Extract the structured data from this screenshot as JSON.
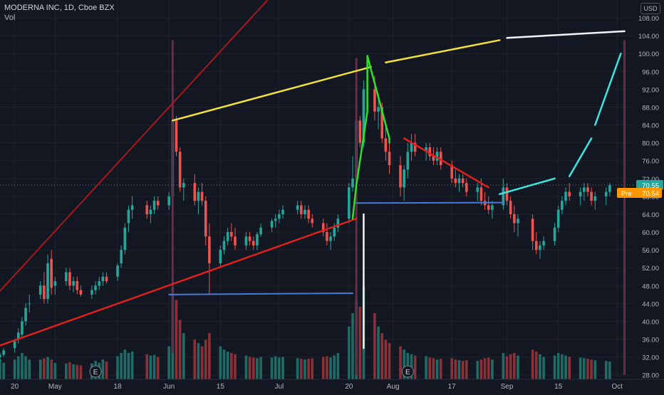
{
  "legend": {
    "symbol": "MODERNA INC, 1D, Cboe BZX",
    "volume_label": "Vol"
  },
  "currency": "USD",
  "price_badges": {
    "last": "70.55",
    "pre_label": "Pre",
    "pre_value": "70.54"
  },
  "earnings_marker": "E",
  "colors": {
    "background": "#131722",
    "up": "#26a69a",
    "down": "#ef5350",
    "vol_up": "#1f6b65",
    "vol_down": "#8a3036",
    "last_price_badge": "#26a69a",
    "pre_badge": "#ff9800",
    "drawing_red": "#e0201a",
    "drawing_yellow": "#f2e13c",
    "drawing_white": "#f4f4f4",
    "drawing_green": "#2ee02b",
    "drawing_blue": "#4a78d8",
    "drawing_cyan": "#3ce6e0",
    "drawing_darkred": "#a8181c",
    "vertical_lines": "#6a2a48"
  },
  "chart_data": {
    "type": "candlestick",
    "y_axis": {
      "ticks": [
        "28.00",
        "32.00",
        "36.00",
        "40.00",
        "44.00",
        "48.00",
        "52.00",
        "56.00",
        "60.00",
        "64.00",
        "68.00",
        "72.00",
        "76.00",
        "80.00",
        "84.00",
        "88.00",
        "92.00",
        "96.00",
        "100.00",
        "104.00",
        "108.00"
      ],
      "range": [
        27,
        112
      ],
      "side": "right"
    },
    "x_axis": {
      "ticks": [
        "20",
        "May",
        "18",
        "Jun",
        "15",
        "Jul",
        "20",
        "Aug",
        "17",
        "Sep",
        "15",
        "Oct"
      ],
      "range": [
        "2020-04-16",
        "2020-10-06"
      ]
    },
    "last_price": 70.55,
    "pre_market_price": 70.54,
    "earnings_dates": [
      "2020-05-12",
      "2020-08-05"
    ],
    "candles": [
      [
        "2020-04-16",
        32,
        33,
        31,
        32.5,
        3
      ],
      [
        "2020-04-17",
        32.5,
        34,
        32,
        33.5,
        2.5
      ],
      [
        "2020-04-20",
        34,
        36,
        33,
        35.5,
        3
      ],
      [
        "2020-04-21",
        36,
        38.5,
        35,
        37.5,
        3.5
      ],
      [
        "2020-04-22",
        37,
        41,
        36.5,
        40,
        4
      ],
      [
        "2020-04-23",
        40,
        44,
        39,
        43,
        3.5
      ],
      [
        "2020-04-24",
        44,
        46,
        42,
        44,
        3
      ],
      [
        "2020-04-27",
        46,
        49,
        45,
        48,
        3
      ],
      [
        "2020-04-28",
        48,
        51,
        44,
        45,
        3.2
      ],
      [
        "2020-04-29",
        45,
        55,
        44,
        53,
        3.4
      ],
      [
        "2020-04-30",
        54,
        56,
        46,
        47.5,
        3
      ],
      [
        "2020-05-01",
        48,
        50,
        46,
        49,
        2.5
      ],
      [
        "2020-05-04",
        49,
        52,
        48,
        51,
        2.4
      ],
      [
        "2020-05-05",
        51,
        52,
        47,
        48,
        2.6
      ],
      [
        "2020-05-06",
        48,
        50,
        46.5,
        49,
        2.3
      ],
      [
        "2020-05-07",
        49,
        50,
        46,
        47,
        2.2
      ],
      [
        "2020-05-08",
        47,
        48,
        45.5,
        46,
        2.1
      ],
      [
        "2020-05-11",
        46,
        48,
        45,
        47,
        2.4
      ],
      [
        "2020-05-12",
        47,
        49,
        46,
        48,
        2.8
      ],
      [
        "2020-05-13",
        48,
        50,
        47,
        49,
        2.5
      ],
      [
        "2020-05-14",
        49,
        51,
        48,
        50,
        3
      ],
      [
        "2020-05-15",
        50,
        51,
        48.5,
        49,
        2.7
      ],
      [
        "2020-05-18",
        50,
        53,
        49,
        52.5,
        3.5
      ],
      [
        "2020-05-19",
        53,
        57,
        52,
        56,
        4
      ],
      [
        "2020-05-20",
        56,
        62,
        55,
        61,
        4.5
      ],
      [
        "2020-05-21",
        62,
        66,
        60,
        65,
        4
      ],
      [
        "2020-05-22",
        65,
        68,
        63,
        66,
        4.2
      ],
      [
        "2020-05-26",
        66,
        67,
        63,
        64,
        3.8
      ],
      [
        "2020-05-27",
        64,
        66,
        62,
        65,
        3.6
      ],
      [
        "2020-05-28",
        65,
        68,
        64,
        67,
        3.7
      ],
      [
        "2020-05-29",
        67,
        68,
        65,
        66,
        3.4
      ],
      [
        "2020-06-01",
        66,
        69,
        65,
        68,
        5
      ],
      [
        "2020-06-02",
        68,
        87,
        67,
        85,
        14
      ],
      [
        "2020-06-03",
        85,
        86,
        77,
        78,
        12
      ],
      [
        "2020-06-04",
        78,
        79,
        69,
        70,
        9
      ],
      [
        "2020-06-05",
        70,
        72,
        67,
        71,
        7
      ],
      [
        "2020-06-08",
        71,
        73,
        66,
        67,
        6
      ],
      [
        "2020-06-09",
        67,
        70,
        64,
        69,
        5.5
      ],
      [
        "2020-06-10",
        69,
        71,
        66,
        67,
        5
      ],
      [
        "2020-06-11",
        67,
        68,
        57,
        59,
        6
      ],
      [
        "2020-06-12",
        59,
        62,
        46,
        53,
        7
      ],
      [
        "2020-06-15",
        53,
        57,
        52,
        56,
        5
      ],
      [
        "2020-06-16",
        56,
        59,
        55,
        58,
        4.5
      ],
      [
        "2020-06-17",
        58,
        61,
        57,
        60,
        4.2
      ],
      [
        "2020-06-18",
        60,
        62,
        58,
        59,
        4
      ],
      [
        "2020-06-19",
        59,
        61,
        56,
        57,
        3.8
      ],
      [
        "2020-06-22",
        57,
        60,
        56,
        59,
        3.6
      ],
      [
        "2020-06-23",
        59,
        60,
        57,
        58,
        3.4
      ],
      [
        "2020-06-24",
        58,
        59,
        56,
        57,
        3.3
      ],
      [
        "2020-06-25",
        57,
        60,
        56,
        59.5,
        3.2
      ],
      [
        "2020-06-26",
        59.5,
        62,
        59,
        61,
        3.4
      ],
      [
        "2020-06-29",
        61,
        63,
        60,
        62.5,
        3.3
      ],
      [
        "2020-06-30",
        62.5,
        64,
        61,
        63,
        3.5
      ],
      [
        "2020-07-01",
        63,
        65,
        62,
        64,
        3.3
      ],
      [
        "2020-07-02",
        64,
        66,
        63,
        65,
        3.4
      ],
      [
        "2020-07-06",
        65,
        67,
        64,
        66,
        3.2
      ],
      [
        "2020-07-07",
        66,
        67,
        63,
        64,
        3.1
      ],
      [
        "2020-07-08",
        64,
        66,
        63,
        65,
        3
      ],
      [
        "2020-07-09",
        65,
        66,
        62,
        63,
        3.1
      ],
      [
        "2020-07-10",
        63,
        64,
        61,
        62,
        3.2
      ],
      [
        "2020-07-13",
        62,
        63,
        59,
        60,
        3.4
      ],
      [
        "2020-07-14",
        60,
        62,
        57,
        58,
        3.5
      ],
      [
        "2020-07-15",
        58,
        60,
        56,
        59,
        3.3
      ],
      [
        "2020-07-16",
        59,
        62,
        58,
        61,
        3.6
      ],
      [
        "2020-07-17",
        61,
        64,
        60,
        63,
        4
      ],
      [
        "2020-07-20",
        63,
        71,
        62,
        70,
        8
      ],
      [
        "2020-07-21",
        70,
        77,
        69,
        72,
        10
      ],
      [
        "2020-07-22",
        72,
        88,
        70,
        85,
        12
      ],
      [
        "2020-07-23",
        85,
        86,
        79,
        80,
        11
      ],
      [
        "2020-07-24",
        80,
        94,
        79,
        92,
        14
      ],
      [
        "2020-07-27",
        92,
        95,
        85,
        87,
        10
      ],
      [
        "2020-07-28",
        87,
        91,
        83,
        88,
        8
      ],
      [
        "2020-07-29",
        88,
        89,
        80,
        81,
        7
      ],
      [
        "2020-07-30",
        81,
        84,
        76,
        78,
        6
      ],
      [
        "2020-07-31",
        78,
        80,
        73,
        75,
        5.5
      ],
      [
        "2020-08-03",
        75,
        77,
        68,
        70,
        5
      ],
      [
        "2020-08-04",
        70,
        75,
        67,
        74,
        4.5
      ],
      [
        "2020-08-05",
        74,
        80,
        72,
        78,
        4
      ],
      [
        "2020-08-06",
        78,
        82,
        76,
        80,
        3.8
      ],
      [
        "2020-08-07",
        80,
        82,
        77,
        78,
        3.6
      ],
      [
        "2020-08-10",
        78,
        80,
        76,
        79,
        3.5
      ],
      [
        "2020-08-11",
        79,
        80,
        76,
        77,
        3.3
      ],
      [
        "2020-08-12",
        77,
        79,
        75,
        76,
        3.2
      ],
      [
        "2020-08-13",
        76,
        79,
        75,
        78,
        3
      ],
      [
        "2020-08-14",
        78,
        79,
        74,
        75,
        3.1
      ],
      [
        "2020-08-17",
        75,
        76,
        71,
        72,
        3.2
      ],
      [
        "2020-08-18",
        72,
        74,
        70,
        71,
        3
      ],
      [
        "2020-08-19",
        71,
        73,
        69,
        72,
        2.9
      ],
      [
        "2020-08-20",
        72,
        73,
        70,
        71,
        2.8
      ],
      [
        "2020-08-21",
        71,
        72,
        68,
        69,
        2.9
      ],
      [
        "2020-08-24",
        69,
        71,
        67,
        70,
        2.8
      ],
      [
        "2020-08-25",
        70,
        72,
        66,
        67,
        3
      ],
      [
        "2020-08-26",
        67,
        69,
        65,
        66,
        3.2
      ],
      [
        "2020-08-27",
        66,
        68,
        64,
        65,
        3.3
      ],
      [
        "2020-08-28",
        65,
        67,
        63,
        66,
        3
      ],
      [
        "2020-08-31",
        66,
        72,
        65,
        70,
        4
      ],
      [
        "2020-09-01",
        70,
        71,
        66,
        67,
        3.5
      ],
      [
        "2020-09-02",
        67,
        68,
        63,
        64,
        3.8
      ],
      [
        "2020-09-03",
        64,
        66,
        60,
        62,
        4
      ],
      [
        "2020-09-04",
        62,
        64,
        59,
        63,
        3.6
      ],
      [
        "2020-09-08",
        63,
        64,
        56,
        58,
        4.5
      ],
      [
        "2020-09-09",
        58,
        60,
        55,
        56,
        4.2
      ],
      [
        "2020-09-10",
        56,
        58,
        54,
        57,
        3.8
      ],
      [
        "2020-09-11",
        57,
        59,
        56,
        58,
        3.4
      ],
      [
        "2020-09-14",
        58,
        62,
        57,
        61,
        3.6
      ],
      [
        "2020-09-15",
        61,
        66,
        60,
        65,
        4
      ],
      [
        "2020-09-16",
        65,
        68,
        64,
        67,
        3.8
      ],
      [
        "2020-09-17",
        67,
        70,
        66,
        69,
        3.6
      ],
      [
        "2020-09-18",
        69,
        71,
        67,
        68,
        3.4
      ],
      [
        "2020-09-21",
        68,
        70,
        66,
        69,
        3.3
      ],
      [
        "2020-09-22",
        69,
        71,
        67,
        70,
        3.2
      ],
      [
        "2020-09-23",
        70,
        71,
        68,
        69,
        3.1
      ],
      [
        "2020-09-24",
        69,
        70,
        66,
        67,
        3
      ],
      [
        "2020-09-25",
        67,
        69,
        65,
        68,
        2.9
      ],
      [
        "2020-09-28",
        68,
        70,
        66,
        69,
        2.8
      ],
      [
        "2020-09-29",
        69,
        71,
        68,
        70.55,
        2.7
      ]
    ]
  },
  "drawings": {
    "vertical_lines": [
      {
        "date": "2020-06-02",
        "y1": 33,
        "y2": 103
      },
      {
        "date": "2020-07-22",
        "y1": 28,
        "y2": 99
      },
      {
        "date": "2020-10-03",
        "y1": 28,
        "y2": 103
      }
    ],
    "lines": [
      {
        "color": "drawing_darkred",
        "width": 2,
        "points": [
          [
            "2020-04-14",
            45
          ],
          [
            "2020-09-04",
            173
          ]
        ]
      },
      {
        "color": "drawing_red",
        "width": 2.5,
        "points": [
          [
            "2020-04-14",
            34
          ],
          [
            "2020-07-22",
            63
          ]
        ]
      },
      {
        "color": "drawing_yellow",
        "width": 2.5,
        "points": [
          [
            "2020-06-02",
            85
          ],
          [
            "2020-07-26",
            97
          ]
        ]
      },
      {
        "color": "drawing_yellow",
        "width": 2.5,
        "points": [
          [
            "2020-07-30",
            98
          ],
          [
            "2020-08-30",
            103
          ]
        ]
      },
      {
        "color": "drawing_white",
        "width": 2.5,
        "points": [
          [
            "2020-09-01",
            103.5
          ],
          [
            "2020-10-03",
            105
          ]
        ]
      },
      {
        "color": "drawing_white",
        "width": 2.5,
        "points": [
          [
            "2020-07-24",
            34
          ],
          [
            "2020-07-24",
            64
          ]
        ]
      },
      {
        "color": "drawing_blue",
        "width": 2,
        "points": [
          [
            "2020-06-01",
            46
          ],
          [
            "2020-07-21",
            46.3
          ]
        ]
      },
      {
        "color": "drawing_blue",
        "width": 2,
        "points": [
          [
            "2020-07-22",
            66.5
          ],
          [
            "2020-08-31",
            66.6
          ]
        ]
      },
      {
        "color": "drawing_green",
        "width": 2.5,
        "points": [
          [
            "2020-07-21",
            63
          ],
          [
            "2020-07-22",
            70.5
          ],
          [
            "2020-07-25",
            87
          ],
          [
            "2020-07-25",
            99.5
          ],
          [
            "2020-07-31",
            81
          ],
          [
            "2020-07-31",
            80
          ]
        ]
      },
      {
        "color": "drawing_red",
        "width": 2.5,
        "points": [
          [
            "2020-08-04",
            81
          ],
          [
            "2020-08-27",
            70
          ]
        ]
      },
      {
        "color": "drawing_cyan",
        "width": 2.5,
        "points": [
          [
            "2020-08-30",
            68.5
          ],
          [
            "2020-09-14",
            72
          ]
        ]
      },
      {
        "color": "drawing_cyan",
        "width": 2.5,
        "points": [
          [
            "2020-09-18",
            72.5
          ],
          [
            "2020-09-24",
            81
          ]
        ]
      },
      {
        "color": "drawing_cyan",
        "width": 2.5,
        "points": [
          [
            "2020-09-25",
            84
          ],
          [
            "2020-10-02",
            100
          ]
        ]
      }
    ]
  }
}
